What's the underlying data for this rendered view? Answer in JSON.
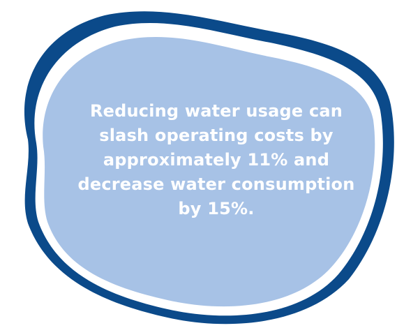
{
  "quote": {
    "text": "Reducing water usage can slash operating costs by approximately 11% and decrease water consumption by 15%."
  },
  "colors": {
    "outer_swoosh": "#0b4a8a",
    "inner_blob": "#a7c2e6",
    "text": "#ffffff",
    "background": "#ffffff"
  }
}
